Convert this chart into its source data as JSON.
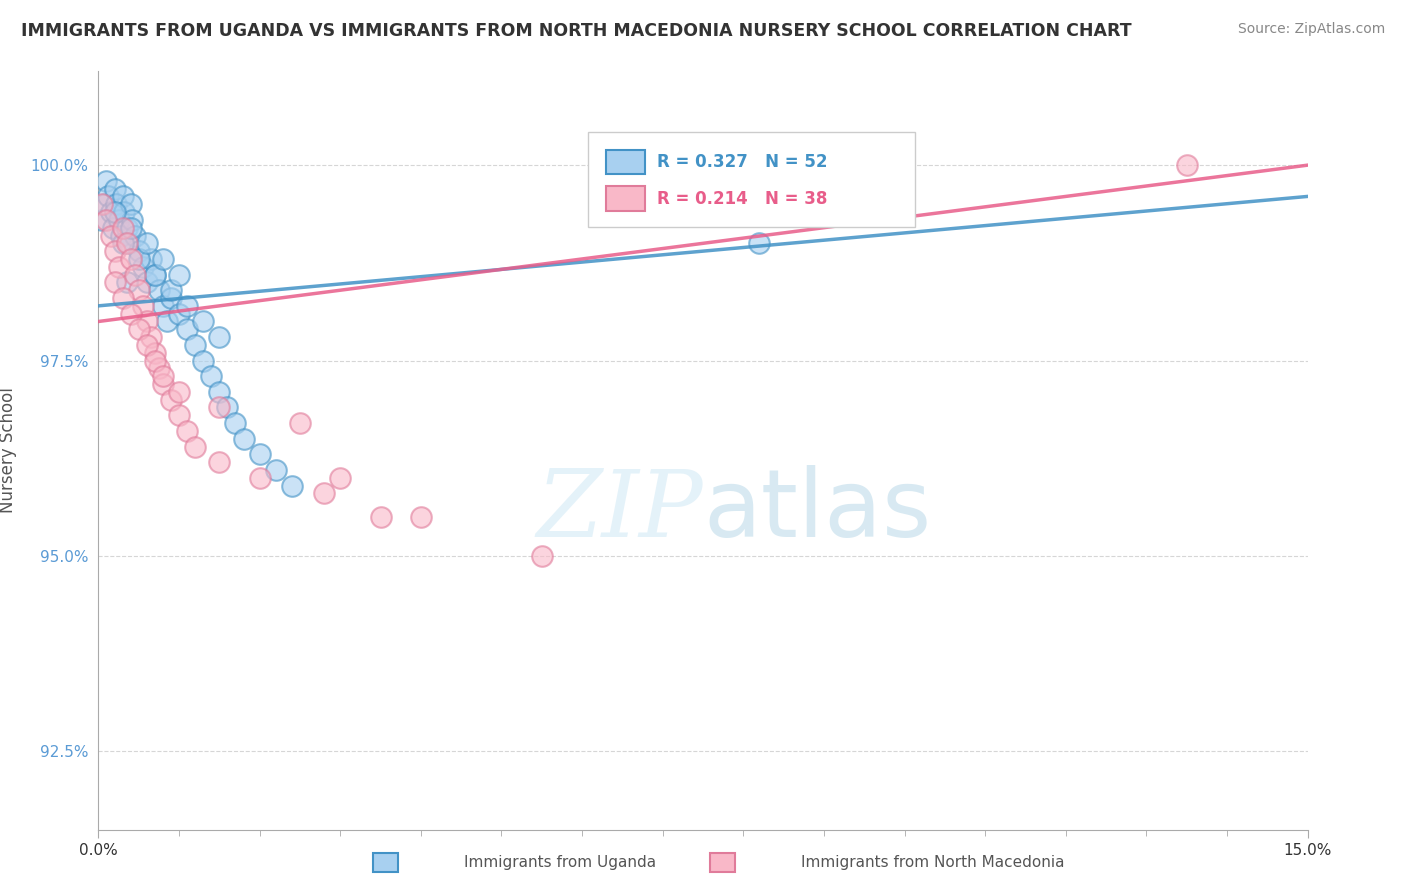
{
  "title": "IMMIGRANTS FROM UGANDA VS IMMIGRANTS FROM NORTH MACEDONIA NURSERY SCHOOL CORRELATION CHART",
  "source": "Source: ZipAtlas.com",
  "ylabel": "Nursery School",
  "y_tick_vals": [
    92.5,
    95.0,
    97.5,
    100.0
  ],
  "x_min": 0.0,
  "x_max": 15.0,
  "y_min": 91.5,
  "y_max": 101.2,
  "color_uganda": "#a8d0f0",
  "color_macedonia": "#f9b8c8",
  "color_edge_uganda": "#4292c6",
  "color_edge_macedonia": "#e07b9a",
  "color_line_uganda": "#4292c6",
  "color_line_macedonia": "#e85d8a",
  "uganda_x": [
    0.05,
    0.08,
    0.1,
    0.12,
    0.15,
    0.18,
    0.2,
    0.22,
    0.25,
    0.28,
    0.3,
    0.32,
    0.35,
    0.38,
    0.4,
    0.42,
    0.45,
    0.5,
    0.55,
    0.6,
    0.65,
    0.7,
    0.75,
    0.8,
    0.85,
    0.9,
    1.0,
    1.1,
    1.2,
    1.3,
    1.4,
    1.5,
    1.6,
    1.7,
    1.8,
    2.0,
    2.2,
    2.4,
    0.3,
    0.5,
    0.7,
    0.9,
    1.1,
    1.3,
    1.5,
    0.4,
    0.6,
    0.8,
    1.0,
    0.2,
    0.35,
    8.2
  ],
  "uganda_y": [
    99.3,
    99.5,
    99.8,
    99.6,
    99.4,
    99.2,
    99.7,
    99.5,
    99.3,
    99.1,
    99.6,
    99.4,
    99.2,
    99.0,
    99.5,
    99.3,
    99.1,
    98.9,
    98.7,
    98.5,
    98.8,
    98.6,
    98.4,
    98.2,
    98.0,
    98.3,
    98.1,
    97.9,
    97.7,
    97.5,
    97.3,
    97.1,
    96.9,
    96.7,
    96.5,
    96.3,
    96.1,
    95.9,
    99.0,
    98.8,
    98.6,
    98.4,
    98.2,
    98.0,
    97.8,
    99.2,
    99.0,
    98.8,
    98.6,
    99.4,
    98.5,
    99.0
  ],
  "macedonia_x": [
    0.05,
    0.1,
    0.15,
    0.2,
    0.25,
    0.3,
    0.35,
    0.4,
    0.45,
    0.5,
    0.55,
    0.6,
    0.65,
    0.7,
    0.75,
    0.8,
    0.9,
    1.0,
    1.1,
    1.2,
    1.5,
    2.0,
    2.8,
    3.5,
    0.2,
    0.3,
    0.4,
    0.5,
    0.6,
    0.7,
    0.8,
    1.0,
    1.5,
    2.5,
    3.0,
    4.0,
    5.5,
    13.5
  ],
  "macedonia_y": [
    99.5,
    99.3,
    99.1,
    98.9,
    98.7,
    99.2,
    99.0,
    98.8,
    98.6,
    98.4,
    98.2,
    98.0,
    97.8,
    97.6,
    97.4,
    97.2,
    97.0,
    96.8,
    96.6,
    96.4,
    96.2,
    96.0,
    95.8,
    95.5,
    98.5,
    98.3,
    98.1,
    97.9,
    97.7,
    97.5,
    97.3,
    97.1,
    96.9,
    96.7,
    96.0,
    95.5,
    95.0,
    100.0
  ],
  "line_uganda_x0": 0.0,
  "line_uganda_y0": 98.2,
  "line_uganda_x1": 15.0,
  "line_uganda_y1": 99.6,
  "line_macedonia_x0": 0.0,
  "line_macedonia_y0": 98.0,
  "line_macedonia_x1": 15.0,
  "line_macedonia_y1": 100.0,
  "watermark_zip": "ZIP",
  "watermark_atlas": "atlas",
  "background_color": "#ffffff",
  "grid_color": "#cccccc"
}
